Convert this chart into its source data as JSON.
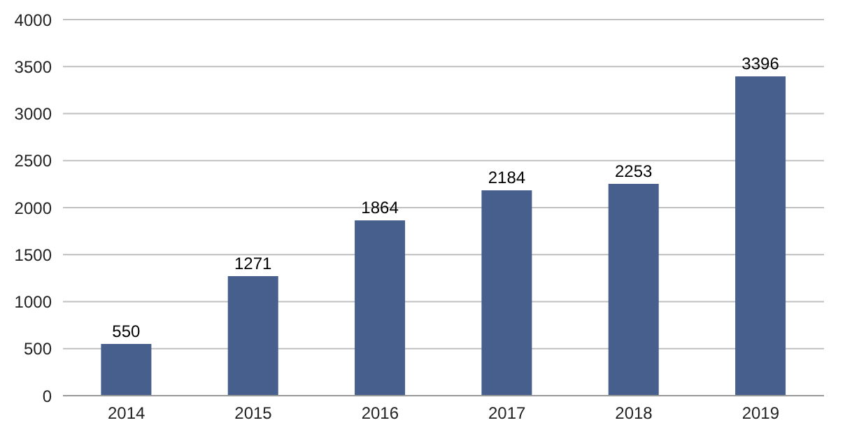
{
  "chart_data": {
    "type": "bar",
    "categories": [
      "2014",
      "2015",
      "2016",
      "2017",
      "2018",
      "2019"
    ],
    "values": [
      550,
      1271,
      1864,
      2184,
      2253,
      3396
    ],
    "color": "#465f8c",
    "ylim": [
      0,
      4000
    ],
    "yticks": [
      0,
      500,
      1000,
      1500,
      2000,
      2500,
      3000,
      3500,
      4000
    ],
    "grid": "y",
    "data_labels": true
  }
}
